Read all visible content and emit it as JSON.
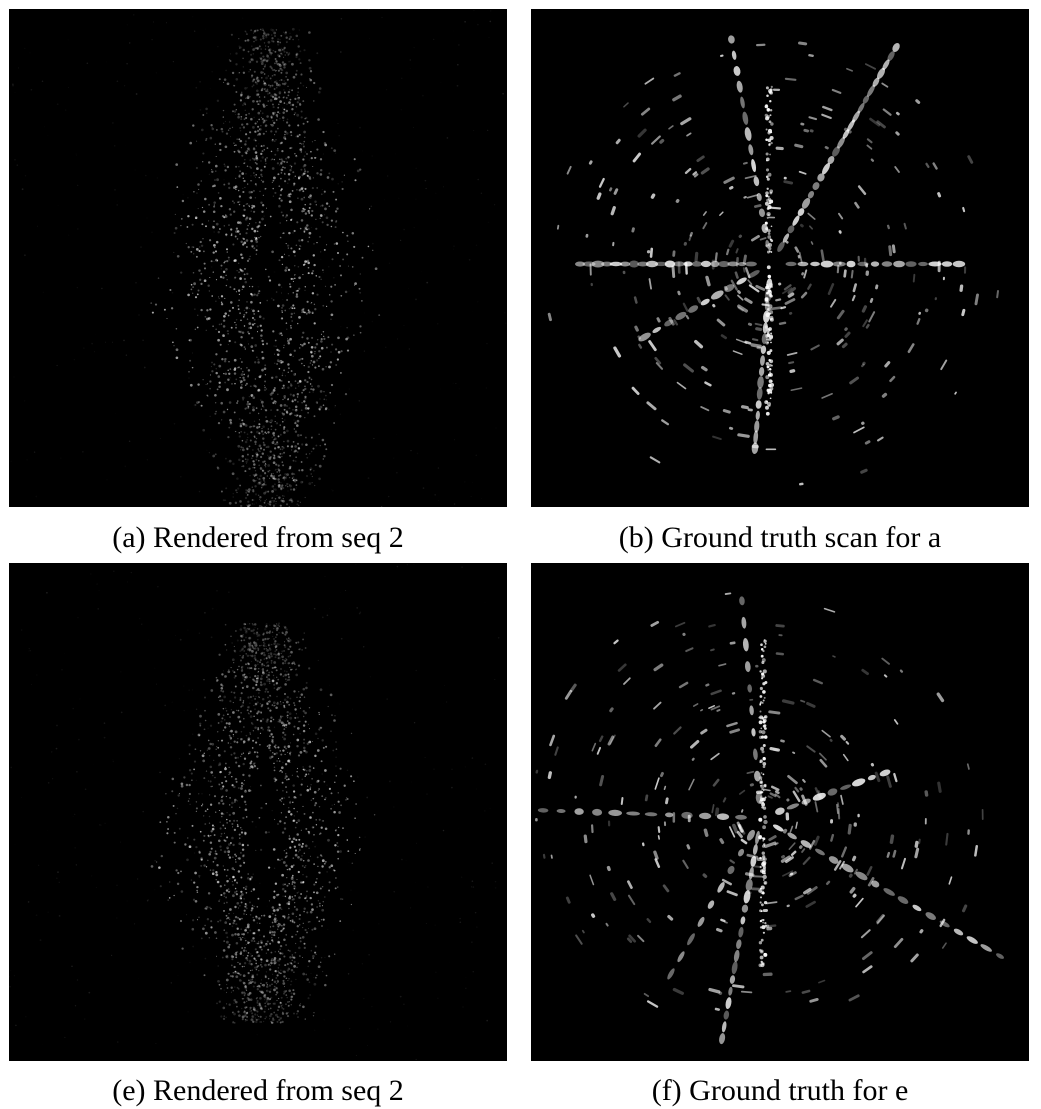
{
  "figure": {
    "panels": [
      {
        "id": "a",
        "caption": "(a) Rendered from seq 2",
        "kind": "rendered"
      },
      {
        "id": "b",
        "caption": "(b) Ground truth scan for a",
        "kind": "ground-truth"
      },
      {
        "id": "e",
        "caption": "(e) Rendered from seq 2",
        "kind": "rendered"
      },
      {
        "id": "f",
        "caption": "(f) Ground truth for e",
        "kind": "ground-truth"
      }
    ],
    "colors": {
      "background": "#000000",
      "returns": "#ffffff"
    }
  }
}
